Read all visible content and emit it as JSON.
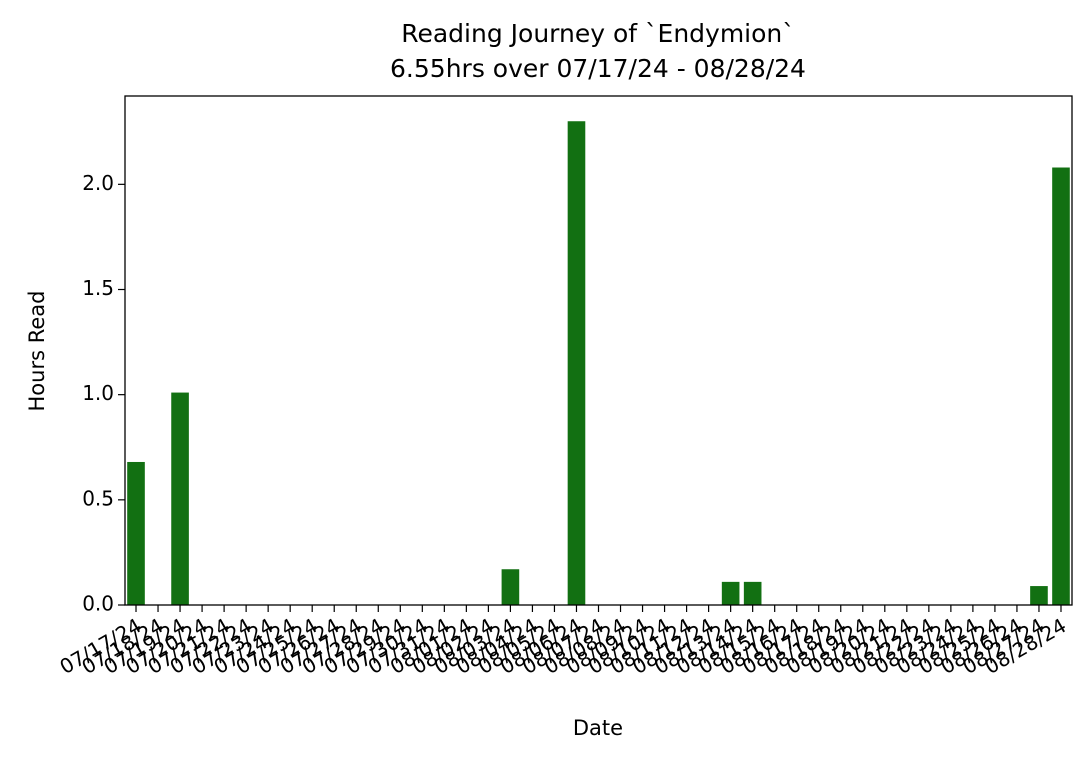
{
  "chart_data": {
    "type": "bar",
    "title": "Reading Journey of `Endymion`",
    "subtitle": "6.55hrs over 07/17/24 - 08/28/24",
    "x_label": "Date",
    "y_label": "Hours Read",
    "categories": [
      "07/17/24",
      "07/18/24",
      "07/19/24",
      "07/20/24",
      "07/21/24",
      "07/22/24",
      "07/23/24",
      "07/24/24",
      "07/25/24",
      "07/26/24",
      "07/27/24",
      "07/28/24",
      "07/29/24",
      "07/30/24",
      "07/31/24",
      "08/01/24",
      "08/02/24",
      "08/03/24",
      "08/04/24",
      "08/05/24",
      "08/06/24",
      "08/07/24",
      "08/08/24",
      "08/09/24",
      "08/10/24",
      "08/11/24",
      "08/12/24",
      "08/13/24",
      "08/14/24",
      "08/15/24",
      "08/16/24",
      "08/17/24",
      "08/18/24",
      "08/19/24",
      "08/20/24",
      "08/21/24",
      "08/22/24",
      "08/23/24",
      "08/24/24",
      "08/25/24",
      "08/26/24",
      "08/27/24",
      "08/28/24"
    ],
    "values": [
      0.68,
      0,
      1.01,
      0,
      0,
      0,
      0,
      0,
      0,
      0,
      0,
      0,
      0,
      0,
      0,
      0,
      0,
      0.17,
      0,
      0,
      2.3,
      0,
      0,
      0,
      0,
      0,
      0,
      0.11,
      0.11,
      0,
      0,
      0,
      0,
      0,
      0,
      0,
      0,
      0,
      0,
      0,
      0,
      0.09,
      2.08
    ],
    "color": "#127012",
    "ylim": [
      0,
      2.42
    ],
    "yticks": [
      {
        "value": 0,
        "label": "0.0"
      },
      {
        "value": 0.5,
        "label": "0.5"
      },
      {
        "value": 1,
        "label": "1.0"
      },
      {
        "value": 1.5,
        "label": "1.5"
      },
      {
        "value": 2,
        "label": "2.0"
      }
    ],
    "grid": false
  }
}
